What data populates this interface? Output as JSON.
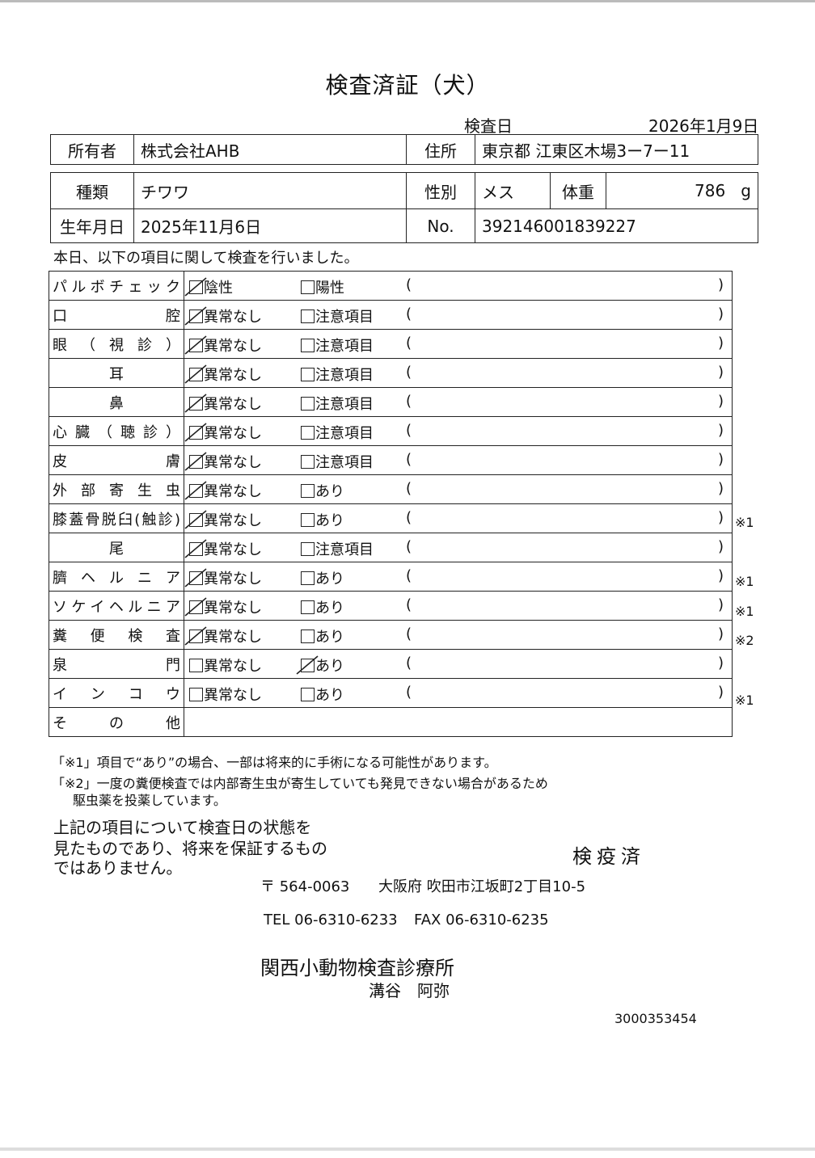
{
  "title": "検査済証（犬）",
  "exam_date_label": "検査日",
  "exam_date": "2026年1月9日",
  "owner": {
    "label": "所有者",
    "value": "株式会社AHB"
  },
  "address": {
    "label": "住所",
    "value": "東京都 江東区木場3ー7ー11"
  },
  "breed": {
    "label": "種類",
    "value": "チワワ"
  },
  "sex": {
    "label": "性別",
    "value": "メス"
  },
  "weight": {
    "label": "体重",
    "value": "786",
    "unit": "g"
  },
  "birthdate": {
    "label": "生年月日",
    "value": "2025年11月6日"
  },
  "number": {
    "label": "No.",
    "value": "392146001839227"
  },
  "intro": "本日、以下の項目に関して検査を行いました。",
  "paren_open": "(",
  "paren_close": ")",
  "checks": [
    {
      "label": "パルボチェック",
      "opt1": "陰性",
      "opt2": "陽性",
      "checked": 1,
      "note": ""
    },
    {
      "label": "口腔",
      "opt1": "異常なし",
      "opt2": "注意項目",
      "checked": 1,
      "note": ""
    },
    {
      "label": "眼（視診）",
      "opt1": "異常なし",
      "opt2": "注意項目",
      "checked": 1,
      "note": ""
    },
    {
      "label": "耳",
      "opt1": "異常なし",
      "opt2": "注意項目",
      "checked": 1,
      "note": ""
    },
    {
      "label": "鼻",
      "opt1": "異常なし",
      "opt2": "注意項目",
      "checked": 1,
      "note": ""
    },
    {
      "label": "心臓（聴診）",
      "opt1": "異常なし",
      "opt2": "注意項目",
      "checked": 1,
      "note": ""
    },
    {
      "label": "皮膚",
      "opt1": "異常なし",
      "opt2": "注意項目",
      "checked": 1,
      "note": ""
    },
    {
      "label": "外部寄生虫",
      "opt1": "異常なし",
      "opt2": "あり",
      "checked": 1,
      "note": ""
    },
    {
      "label": "膝蓋骨脱臼(触診)",
      "opt1": "異常なし",
      "opt2": "あり",
      "checked": 1,
      "note": "※1"
    },
    {
      "label": "尾",
      "opt1": "異常なし",
      "opt2": "注意項目",
      "checked": 1,
      "note": ""
    },
    {
      "label": "臍ヘルニア",
      "opt1": "異常なし",
      "opt2": "あり",
      "checked": 1,
      "note": "※1"
    },
    {
      "label": "ソケイヘルニア",
      "opt1": "異常なし",
      "opt2": "あり",
      "checked": 1,
      "note": "※1"
    },
    {
      "label": "糞便検査",
      "opt1": "異常なし",
      "opt2": "あり",
      "checked": 1,
      "note": "※2"
    },
    {
      "label": "泉門",
      "opt1": "異常なし",
      "opt2": "あり",
      "checked": 2,
      "note": ""
    },
    {
      "label": "インコウ",
      "opt1": "異常なし",
      "opt2": "あり",
      "checked": 0,
      "note": "※1"
    }
  ],
  "other_label": "その他",
  "notes": [
    "「※1」項目で“あり”の場合、一部は将来的に手術になる可能性があります。",
    "「※2」一度の糞便検査では内部寄生虫が寄生していても発見できない場合があるため",
    "駆虫薬を投薬しています。"
  ],
  "disclaimer": [
    "上記の項目について検査日の状態を",
    "見たものであり、将来を保証するもの",
    "ではありません。"
  ],
  "stamp": "検疫済",
  "postal": "〒 564-0063",
  "clinic_address": "大阪府 吹田市江坂町2丁目10-5",
  "tel": "TEL 06-6310-6233",
  "fax": "FAX 06-6310-6235",
  "clinic_name": "関西小動物検査診療所",
  "vet_name": "溝谷　阿弥",
  "doc_id": "3000353454"
}
